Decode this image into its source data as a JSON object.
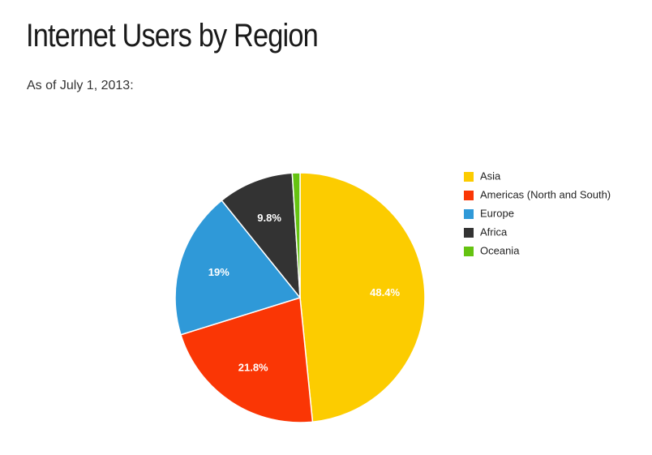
{
  "page": {
    "title": "Internet Users by Region",
    "subtitle": "As of July 1, 2013:"
  },
  "chart_data": {
    "type": "pie",
    "title": "Internet Users by Region",
    "subtitle": "As of July 1, 2013:",
    "categories": [
      "Asia",
      "Americas (North and South)",
      "Europe",
      "Africa",
      "Oceania"
    ],
    "values": [
      48.4,
      21.8,
      19.0,
      9.8,
      1.0
    ],
    "value_labels": [
      "48.4%",
      "21.8%",
      "19%",
      "9.8%",
      ""
    ],
    "colors": [
      "#fccc00",
      "#fa3605",
      "#2f99d8",
      "#333333",
      "#65c311"
    ],
    "legend_position": "right",
    "start_angle": "top, clockwise"
  }
}
